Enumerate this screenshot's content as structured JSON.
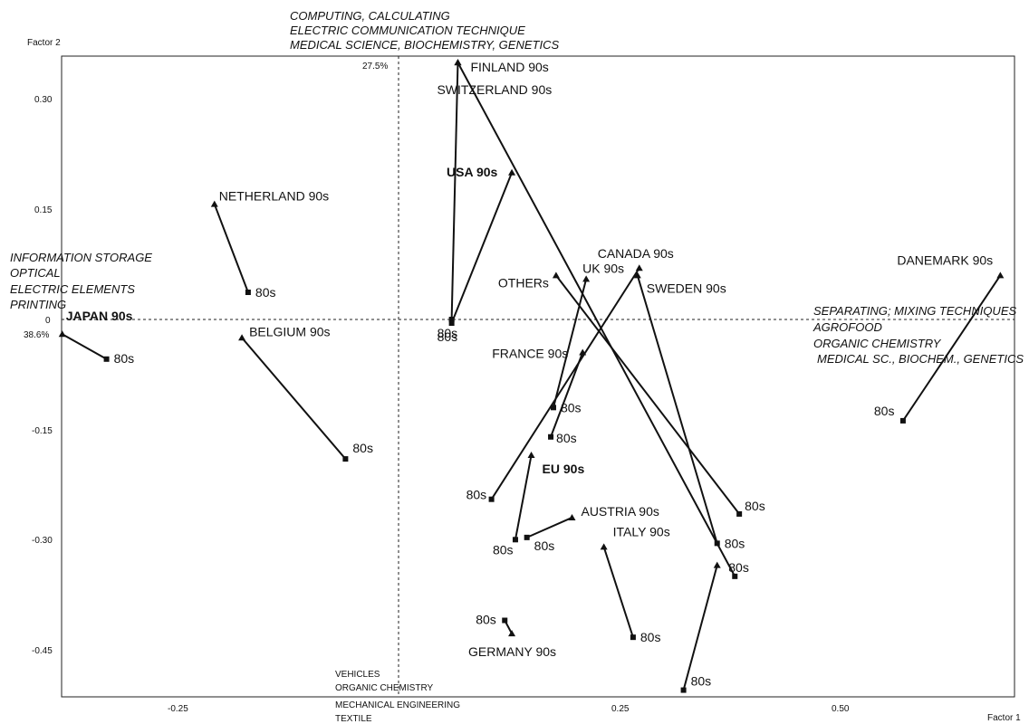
{
  "chart_data": {
    "type": "scatter",
    "xlabel": "Factor 1",
    "ylabel": "Factor 2",
    "x_axis_pct": "38.6%",
    "y_axis_pct": "27.5%",
    "xlim": [
      -0.38,
      0.68
    ],
    "ylim": [
      -0.51,
      0.355
    ],
    "x_ticks": [
      "-0.25",
      "0.25",
      "0.50"
    ],
    "y_ticks": [
      "0.30",
      "0.15",
      "0",
      "-0.15",
      "-0.30",
      "-0.45"
    ],
    "series": [
      {
        "name": "FINLAND 90s",
        "bold": false,
        "start": [
          0.06,
          0.0
        ],
        "end": [
          0.067,
          0.35
        ],
        "start_label": "80s"
      },
      {
        "name": "USA 90s",
        "bold": true,
        "start": [
          0.06,
          -0.005
        ],
        "end": [
          0.128,
          0.2
        ],
        "start_label": "80s"
      },
      {
        "name": "NETHERLAND 90s",
        "bold": false,
        "start": [
          -0.17,
          0.037
        ],
        "end": [
          -0.208,
          0.157
        ],
        "start_label": "80s"
      },
      {
        "name": "JAPAN 90s",
        "bold": true,
        "start": [
          -0.33,
          -0.054
        ],
        "end": [
          -0.38,
          -0.02
        ],
        "start_label": "80s"
      },
      {
        "name": "BELGIUM 90s",
        "bold": false,
        "start": [
          -0.06,
          -0.19
        ],
        "end": [
          -0.177,
          -0.025
        ],
        "start_label": "80s"
      },
      {
        "name": "OTHERs",
        "bold": false,
        "start": [
          0.385,
          -0.265
        ],
        "end": [
          0.178,
          0.06
        ],
        "start_label": "80s"
      },
      {
        "name": "UK 90s",
        "bold": false,
        "start": [
          0.175,
          -0.12
        ],
        "end": [
          0.212,
          0.055
        ],
        "start_label": "80s"
      },
      {
        "name": "CANADA 90s",
        "bold": false,
        "start": [
          0.105,
          -0.245
        ],
        "end": [
          0.272,
          0.07
        ],
        "start_label": "80s"
      },
      {
        "name": "SWEDEN 90s",
        "bold": false,
        "start": [
          0.36,
          -0.305
        ],
        "end": [
          0.27,
          0.06
        ],
        "start_label": "80s"
      },
      {
        "name": "FRANCE 90s",
        "bold": false,
        "start": [
          0.172,
          -0.16
        ],
        "end": [
          0.208,
          -0.045
        ],
        "start_label": "80s"
      },
      {
        "name": "EU 90s",
        "bold": true,
        "start": [
          0.132,
          -0.3
        ],
        "end": [
          0.15,
          -0.185
        ],
        "start_label": "80s"
      },
      {
        "name": "AUSTRIA 90s",
        "bold": false,
        "start": [
          0.145,
          -0.297
        ],
        "end": [
          0.196,
          -0.27
        ],
        "start_label": "80s"
      },
      {
        "name": "SWITZERLAND 90s",
        "bold": false,
        "start": [
          0.38,
          -0.35
        ],
        "end": [
          0.067,
          0.35
        ],
        "start_label": "80s"
      },
      {
        "name": "ITALY 90s",
        "bold": false,
        "start": [
          0.265,
          -0.433
        ],
        "end": [
          0.232,
          -0.31
        ],
        "start_label": "80s"
      },
      {
        "name": "GERMANY 90s",
        "bold": false,
        "start": [
          0.12,
          -0.41
        ],
        "end": [
          0.128,
          -0.428
        ],
        "start_label": "80s"
      },
      {
        "name": "",
        "bold": false,
        "start": [
          0.322,
          -0.505
        ],
        "end": [
          0.36,
          -0.335
        ],
        "start_label": "80s"
      },
      {
        "name": "DANEMARK 90s",
        "bold": false,
        "start": [
          0.57,
          -0.138
        ],
        "end": [
          0.68,
          0.06
        ],
        "start_label": "80s"
      }
    ],
    "axis_annotations": {
      "top": [
        "COMPUTING, CALCULATING",
        "ELECTRIC COMMUNICATION TECHNIQUE",
        "MEDICAL SCIENCE, BIOCHEMISTRY, GENETICS"
      ],
      "left": [
        "INFORMATION STORAGE",
        "OPTICAL",
        "ELECTRIC ELEMENTS",
        "PRINTING"
      ],
      "right": [
        "SEPARATING; MIXING TECHNIQUES",
        "AGROFOOD",
        "ORGANIC CHEMISTRY",
        "MEDICAL SC., BIOCHEM., GENETICS"
      ],
      "bottom": [
        "VEHICLES",
        "ORGANIC CHEMISTRY",
        "MECHANICAL ENGINEERING",
        "TEXTILE"
      ]
    }
  }
}
